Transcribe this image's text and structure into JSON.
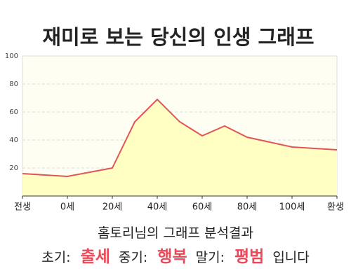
{
  "chart_data": {
    "type": "area",
    "title": "재미로 보는 당신의 인생 그래프",
    "x": [
      -20,
      0,
      20,
      30,
      40,
      50,
      60,
      70,
      80,
      100,
      120
    ],
    "values": [
      16,
      14,
      20,
      53,
      69,
      53,
      43,
      50,
      42,
      35,
      33
    ],
    "color": "#e05555",
    "fill": "#ffffc4",
    "xlim": [
      -20,
      120
    ],
    "xticks": [
      {
        "value": -20,
        "label": "전생"
      },
      {
        "value": 0,
        "label": "0세"
      },
      {
        "value": 20,
        "label": "20세"
      },
      {
        "value": 40,
        "label": "40세"
      },
      {
        "value": 60,
        "label": "60세"
      },
      {
        "value": 80,
        "label": "80세"
      },
      {
        "value": 100,
        "label": "100세"
      },
      {
        "value": 120,
        "label": "환생"
      }
    ],
    "ylim": [
      0,
      100
    ],
    "yticks": [
      20,
      40,
      60,
      80,
      100
    ],
    "grid": true
  },
  "result": {
    "heading": "홈토리님의 그래프 분석결과",
    "items": [
      {
        "label": "초기:",
        "value": "출세"
      },
      {
        "label": "중기:",
        "value": "행복"
      },
      {
        "label": "말기:",
        "value": "평범"
      }
    ],
    "suffix": "입니다"
  }
}
